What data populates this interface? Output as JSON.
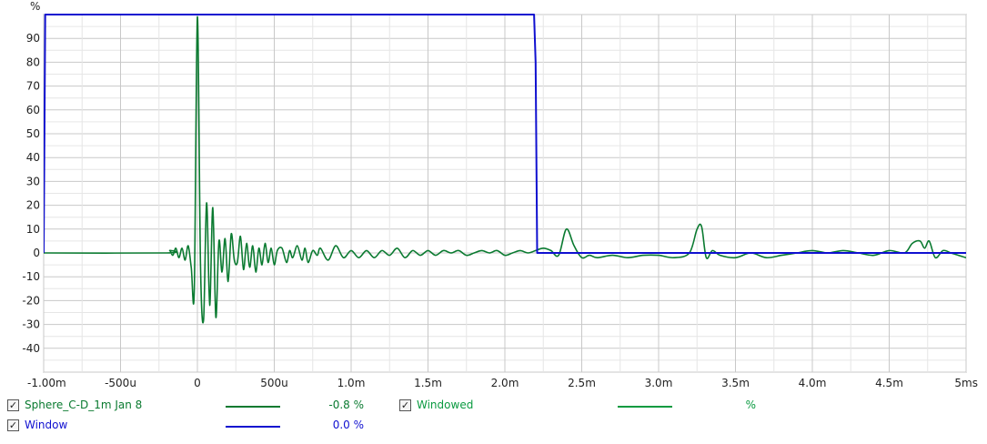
{
  "chart_data": {
    "type": "line",
    "title": "",
    "ylabel": "%",
    "xlabel": "",
    "xlim": [
      -1.0,
      5.0
    ],
    "ylim": [
      -50,
      100
    ],
    "grid": true,
    "x_ticks": [
      {
        "v": -1.0,
        "label": "-1.00m"
      },
      {
        "v": -0.5,
        "label": "-500u"
      },
      {
        "v": 0.0,
        "label": "0"
      },
      {
        "v": 0.5,
        "label": "500u"
      },
      {
        "v": 1.0,
        "label": "1.0m"
      },
      {
        "v": 1.5,
        "label": "1.5m"
      },
      {
        "v": 2.0,
        "label": "2.0m"
      },
      {
        "v": 2.5,
        "label": "2.5m"
      },
      {
        "v": 3.0,
        "label": "3.0m"
      },
      {
        "v": 3.5,
        "label": "3.5m"
      },
      {
        "v": 4.0,
        "label": "4.0m"
      },
      {
        "v": 4.5,
        "label": "4.5m"
      },
      {
        "v": 5.0,
        "label": "5ms"
      }
    ],
    "y_ticks": [
      {
        "v": 90,
        "label": "90"
      },
      {
        "v": 80,
        "label": "80"
      },
      {
        "v": 70,
        "label": "70"
      },
      {
        "v": 60,
        "label": "60"
      },
      {
        "v": 50,
        "label": "50"
      },
      {
        "v": 40,
        "label": "40"
      },
      {
        "v": 30,
        "label": "30"
      },
      {
        "v": 20,
        "label": "20"
      },
      {
        "v": 10,
        "label": "10"
      },
      {
        "v": 0,
        "label": "0"
      },
      {
        "v": -10,
        "label": "-10"
      },
      {
        "v": -20,
        "label": "-20"
      },
      {
        "v": -30,
        "label": "-30"
      },
      {
        "v": -40,
        "label": "-40"
      }
    ],
    "series": [
      {
        "name": "Window",
        "color": "#1010d0",
        "x": [
          -1.0,
          -0.99,
          -0.98,
          2.19,
          2.2,
          2.21,
          5.0
        ],
        "y": [
          0,
          100,
          100,
          100,
          80,
          0,
          0
        ]
      },
      {
        "name": "Sphere_C-D_1m Jan 8",
        "color": "#0a7a30",
        "x": [
          -1.0,
          -0.2,
          -0.18,
          -0.16,
          -0.14,
          -0.12,
          -0.1,
          -0.08,
          -0.06,
          -0.04,
          -0.02,
          0.0,
          0.02,
          0.04,
          0.06,
          0.08,
          0.1,
          0.12,
          0.14,
          0.16,
          0.18,
          0.2,
          0.22,
          0.24,
          0.26,
          0.28,
          0.3,
          0.32,
          0.34,
          0.36,
          0.38,
          0.4,
          0.42,
          0.44,
          0.46,
          0.48,
          0.5,
          0.52,
          0.55,
          0.58,
          0.6,
          0.62,
          0.65,
          0.68,
          0.7,
          0.72,
          0.75,
          0.78,
          0.8,
          0.85,
          0.9,
          0.95,
          1.0,
          1.05,
          1.1,
          1.15,
          1.2,
          1.25,
          1.3,
          1.35,
          1.4,
          1.45,
          1.5,
          1.55,
          1.6,
          1.65,
          1.7,
          1.75,
          1.8,
          1.85,
          1.9,
          1.95,
          2.0,
          2.05,
          2.1,
          2.15,
          2.2,
          2.25,
          2.3,
          2.35,
          2.4,
          2.45,
          2.5,
          2.55,
          2.6,
          2.7,
          2.8,
          2.9,
          3.0,
          3.1,
          3.2,
          3.25,
          3.28,
          3.31,
          3.35,
          3.4,
          3.5,
          3.6,
          3.7,
          3.8,
          3.9,
          4.0,
          4.1,
          4.2,
          4.3,
          4.4,
          4.5,
          4.6,
          4.65,
          4.7,
          4.73,
          4.76,
          4.8,
          4.85,
          4.9,
          4.95,
          5.0
        ],
        "y": [
          0,
          0,
          1,
          -1,
          2,
          -2,
          2,
          -3,
          3,
          -6,
          -15,
          99,
          -5,
          -28,
          21,
          -22,
          19,
          -27,
          5,
          -8,
          6,
          -12,
          8,
          -3,
          -4,
          7,
          -7,
          4,
          -6,
          3,
          -8,
          2,
          -5,
          4,
          -4,
          2,
          -5,
          1,
          2,
          -4,
          1,
          -2,
          3,
          -3,
          2,
          -4,
          1,
          -1,
          2,
          -3,
          3,
          -2,
          1,
          -2,
          1,
          -2,
          1,
          -1,
          2,
          -2,
          1,
          -1,
          1,
          -1,
          1,
          0,
          1,
          -1,
          0,
          1,
          0,
          1,
          -1,
          0,
          1,
          0,
          1,
          2,
          1,
          -1,
          10,
          3,
          -2,
          -1,
          -2,
          -1,
          -2,
          -1,
          -1,
          -2,
          0,
          10,
          11,
          -2,
          1,
          -1,
          -2,
          0,
          -2,
          -1,
          0,
          1,
          0,
          1,
          0,
          -1,
          1,
          0,
          4,
          5,
          2,
          5,
          -2,
          1,
          0,
          -1,
          -2
        ]
      }
    ],
    "legend": [
      {
        "name": "Sphere_C-D_1m Jan 8",
        "value": "-0.8 %",
        "color": "#0a7a30",
        "checked": true
      },
      {
        "name": "Windowed",
        "value": "%",
        "color": "#0a9a40",
        "checked": true
      },
      {
        "name": "Window",
        "value": "0.0 %",
        "color": "#1010d0",
        "checked": true
      }
    ],
    "legend_placement": "bottom"
  }
}
